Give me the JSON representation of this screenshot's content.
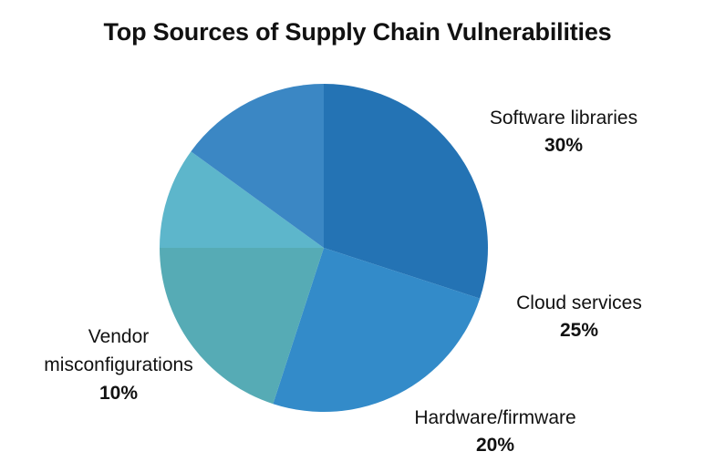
{
  "chart_data": {
    "type": "pie",
    "title": "Top Sources of Supply Chain Vulnerabilities",
    "slices": [
      {
        "label": "Software libraries",
        "value": 30,
        "value_label": "30%",
        "color": "#2473b4"
      },
      {
        "label": "Cloud services",
        "value": 25,
        "value_label": "25%",
        "color": "#338bc9"
      },
      {
        "label": "Hardware/firmware",
        "value": 20,
        "value_label": "20%",
        "color": "#56abb5"
      },
      {
        "label": "Vendor misconfigurations",
        "value": 10,
        "value_label": "10%",
        "color": "#5db6cb"
      },
      {
        "label": "",
        "value": 15,
        "value_label": "",
        "color": "#3b87c4"
      }
    ],
    "legend": "none"
  }
}
